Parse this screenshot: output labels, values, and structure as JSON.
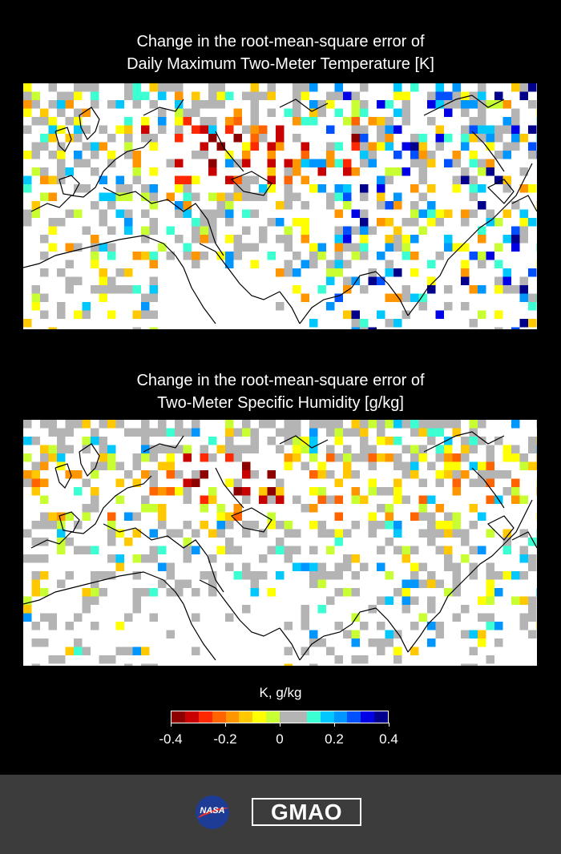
{
  "maps": [
    {
      "title_line1": "Change in the root-mean-square error of",
      "title_line2": "Daily Maximum Two-Meter Temperature [K]"
    },
    {
      "title_line1": "Change in the root-mean-square error of",
      "title_line2": "Two-Meter Specific Humidity [g/kg]"
    }
  ],
  "colorbar": {
    "unit_label": "K, g/kg",
    "range": [
      -0.4,
      0.4
    ],
    "tick_labels": [
      "-0.4",
      "-0.2",
      "0",
      "0.2",
      "0.4"
    ],
    "colors": [
      "#8c0000",
      "#c80000",
      "#ff2800",
      "#ff6400",
      "#ff9600",
      "#ffc800",
      "#ffff00",
      "#c8ff32",
      "#b4b4b4",
      "#b4b4b4",
      "#3cffd2",
      "#00c8ff",
      "#0096ff",
      "#0050ff",
      "#0000e6",
      "#00008c"
    ]
  },
  "logos": {
    "nasa": "NASA",
    "gmao": "GMAO"
  }
}
